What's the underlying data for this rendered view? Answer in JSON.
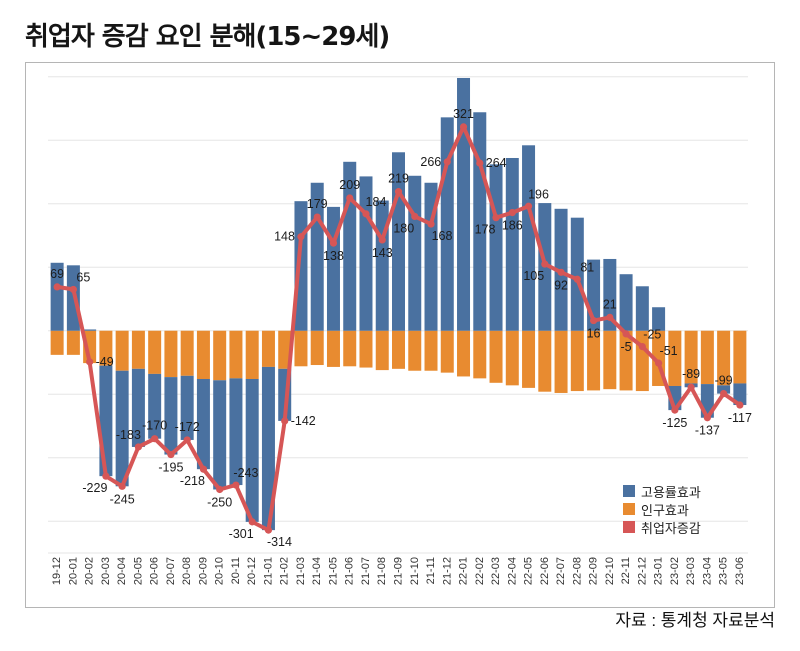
{
  "title": "취업자 증감 요인 분해(15~29세)",
  "source": "자료 : 통계청 자료분석",
  "colors": {
    "employment_rate_effect": "#4a71a0",
    "population_effect": "#e88b30",
    "employed_change": "#d65656"
  },
  "legend": {
    "placement": "bottom-right",
    "items": [
      {
        "label": "고용률효과",
        "color_key": "employment_rate_effect"
      },
      {
        "label": "인구효과",
        "color_key": "population_effect"
      },
      {
        "label": "취업자증감",
        "color_key": "employed_change"
      }
    ]
  },
  "chart_data": {
    "type": "bar",
    "subtype": "stacked bar with line overlay",
    "title": "취업자 증감 요인 분해(15~29세)",
    "xlabel": "",
    "ylabel": "",
    "ylim": [
      -350,
      420
    ],
    "grid": true,
    "grid_step": 100,
    "y_tick_labels_shown": false,
    "legend_position": "bottom-right",
    "categories": [
      "19-12",
      "20-01",
      "20-02",
      "20-03",
      "20-04",
      "20-05",
      "20-06",
      "20-07",
      "20-08",
      "20-09",
      "20-10",
      "20-11",
      "20-12",
      "21-01",
      "21-02",
      "21-03",
      "21-04",
      "21-05",
      "21-06",
      "21-07",
      "21-08",
      "21-09",
      "21-10",
      "21-11",
      "21-12",
      "22-01",
      "22-02",
      "22-03",
      "22-04",
      "22-05",
      "22-06",
      "22-07",
      "22-08",
      "22-09",
      "22-10",
      "22-11",
      "22-12",
      "23-01",
      "23-02",
      "23-03",
      "23-04",
      "23-05",
      "23-06"
    ],
    "series": [
      {
        "name": "고용률효과",
        "type": "bar",
        "color_key": "employment_rate_effect",
        "values": [
          107,
          103,
          2,
          -174,
          -182,
          -123,
          -102,
          -122,
          -101,
          -142,
          -172,
          -168,
          -225,
          -257,
          -82,
          204,
          233,
          195,
          266,
          243,
          205,
          281,
          244,
          233,
          336,
          398,
          344,
          262,
          272,
          292,
          201,
          192,
          178,
          112,
          113,
          89,
          70,
          37,
          -38,
          -6,
          -53,
          -13,
          -34
        ]
      },
      {
        "name": "인구효과",
        "type": "bar",
        "color_key": "population_effect",
        "values": [
          -38,
          -38,
          -51,
          -55,
          -63,
          -60,
          -68,
          -73,
          -71,
          -76,
          -78,
          -75,
          -76,
          -57,
          -60,
          -56,
          -54,
          -57,
          -56,
          -58,
          -62,
          -60,
          -63,
          -63,
          -66,
          -72,
          -75,
          -82,
          -86,
          -90,
          -96,
          -98,
          -95,
          -94,
          -92,
          -94,
          -95,
          -87,
          -87,
          -83,
          -84,
          -86,
          -83
        ]
      },
      {
        "name": "취업자증감",
        "type": "line",
        "color_key": "employed_change",
        "values": [
          69,
          65,
          -49,
          -229,
          -245,
          -183,
          -170,
          -195,
          -172,
          -218,
          -250,
          -243,
          -301,
          -314,
          -142,
          148,
          179,
          138,
          209,
          184,
          143,
          219,
          180,
          168,
          266,
          321,
          264,
          178,
          186,
          196,
          105,
          92,
          81,
          16,
          21,
          -5,
          -25,
          -51,
          -125,
          -89,
          -137,
          -99,
          -117
        ],
        "data_labels": [
          "69",
          "65",
          "-49",
          "-229",
          "-245",
          "-183",
          "-170",
          "-195",
          "-172",
          "-218",
          "-250",
          "-243",
          "-301",
          "-314",
          "-142",
          "148",
          "179",
          "138",
          "209",
          "184",
          "143",
          "219",
          "180",
          "168",
          "266",
          "321",
          "264",
          "178",
          "186",
          "196",
          "105",
          "92",
          "81",
          "16",
          "21",
          "-5",
          "-25",
          "-51",
          "-125",
          "-89",
          "-137",
          "-99",
          "-117"
        ],
        "label_positions": [
          "above",
          "above-right",
          "right",
          "below-left",
          "below",
          "above-left",
          "above",
          "below",
          "above",
          "below-left",
          "below",
          "above-right",
          "below-left",
          "below-right",
          "right",
          "left",
          "above",
          "below",
          "above",
          "above-right",
          "below",
          "above",
          "below-left",
          "below-right",
          "left",
          "above",
          "right",
          "below-left",
          "below",
          "above-right",
          "below-left",
          "below",
          "above-right",
          "below",
          "above",
          "below",
          "above-right",
          "above-right",
          "below",
          "above",
          "below",
          "above",
          "below"
        ]
      }
    ]
  }
}
